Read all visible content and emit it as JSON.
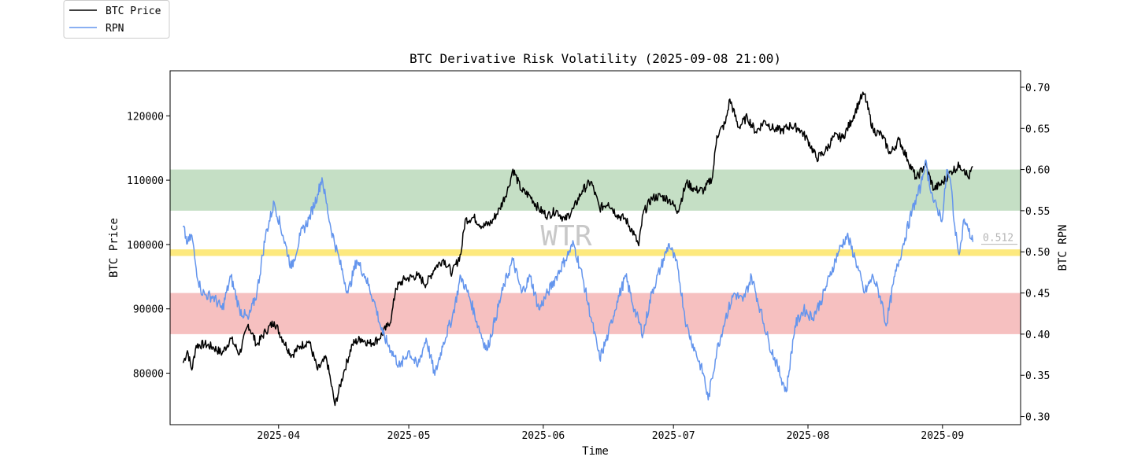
{
  "chart_data": {
    "type": "line",
    "title": "BTC Derivative Risk Volatility (2025-09-08 21:00)",
    "xlabel": "Time",
    "ylabel_left": "BTC Price",
    "ylabel_right": "BTC RPN",
    "watermark": "WTR",
    "x_range": [
      "2025-03-07",
      "2025-09-19"
    ],
    "x_ticks": [
      "2025-04",
      "2025-05",
      "2025-06",
      "2025-07",
      "2025-08",
      "2025-09"
    ],
    "x_tick_dates": [
      "2025-04-01",
      "2025-05-01",
      "2025-06-01",
      "2025-07-01",
      "2025-08-01",
      "2025-09-01"
    ],
    "y_left_range": [
      72000,
      127000
    ],
    "y_left_ticks": [
      80000,
      90000,
      100000,
      110000,
      120000
    ],
    "y_right_range": [
      0.29,
      0.72
    ],
    "y_right_ticks": [
      "0.30",
      "0.35",
      "0.40",
      "0.45",
      "0.50",
      "0.55",
      "0.60",
      "0.65",
      "0.70"
    ],
    "bands": [
      {
        "name": "high",
        "from": 0.55,
        "to": 0.6,
        "color": "#c5dfc5"
      },
      {
        "name": "mid",
        "from": 0.495,
        "to": 0.503,
        "color": "#fde97e"
      },
      {
        "name": "low",
        "from": 0.4,
        "to": 0.45,
        "color": "#f6c0c0"
      }
    ],
    "last_value_label": "0.512",
    "last_value": 0.512,
    "legend_position": "top-left (outside axes)",
    "series": [
      {
        "name": "BTC Price",
        "axis": "left",
        "color": "#000000",
        "points": [
          [
            "2025-03-10",
            81600
          ],
          [
            "2025-03-11",
            83500
          ],
          [
            "2025-03-12",
            80500
          ],
          [
            "2025-03-13",
            84300
          ],
          [
            "2025-03-15",
            84500
          ],
          [
            "2025-03-17",
            84000
          ],
          [
            "2025-03-19",
            83100
          ],
          [
            "2025-03-21",
            85400
          ],
          [
            "2025-03-23",
            83000
          ],
          [
            "2025-03-25",
            87600
          ],
          [
            "2025-03-27",
            84400
          ],
          [
            "2025-03-29",
            86500
          ],
          [
            "2025-03-31",
            88000
          ],
          [
            "2025-04-02",
            85200
          ],
          [
            "2025-04-04",
            82800
          ],
          [
            "2025-04-06",
            84200
          ],
          [
            "2025-04-08",
            85000
          ],
          [
            "2025-04-10",
            80500
          ],
          [
            "2025-04-12",
            82400
          ],
          [
            "2025-04-13",
            78800
          ],
          [
            "2025-04-14",
            75000
          ],
          [
            "2025-04-16",
            80100
          ],
          [
            "2025-04-18",
            84500
          ],
          [
            "2025-04-20",
            85400
          ],
          [
            "2025-04-22",
            84600
          ],
          [
            "2025-04-24",
            85300
          ],
          [
            "2025-04-26",
            87200
          ],
          [
            "2025-04-27",
            88600
          ],
          [
            "2025-04-28",
            93200
          ],
          [
            "2025-04-30",
            94600
          ],
          [
            "2025-05-03",
            95200
          ],
          [
            "2025-05-05",
            93800
          ],
          [
            "2025-05-07",
            96400
          ],
          [
            "2025-05-09",
            97700
          ],
          [
            "2025-05-11",
            95600
          ],
          [
            "2025-05-13",
            98500
          ],
          [
            "2025-05-14",
            103800
          ],
          [
            "2025-05-16",
            104200
          ],
          [
            "2025-05-18",
            102800
          ],
          [
            "2025-05-20",
            103400
          ],
          [
            "2025-05-22",
            105600
          ],
          [
            "2025-05-24",
            108900
          ],
          [
            "2025-05-25",
            111700
          ],
          [
            "2025-05-27",
            108400
          ],
          [
            "2025-05-29",
            107500
          ],
          [
            "2025-05-31",
            105500
          ],
          [
            "2025-06-02",
            104500
          ],
          [
            "2025-06-04",
            105300
          ],
          [
            "2025-06-06",
            103800
          ],
          [
            "2025-06-08",
            105600
          ],
          [
            "2025-06-10",
            108400
          ],
          [
            "2025-06-12",
            109800
          ],
          [
            "2025-06-14",
            105600
          ],
          [
            "2025-06-16",
            106500
          ],
          [
            "2025-06-18",
            104600
          ],
          [
            "2025-06-20",
            103900
          ],
          [
            "2025-06-22",
            101500
          ],
          [
            "2025-06-23",
            99800
          ],
          [
            "2025-06-24",
            104800
          ],
          [
            "2025-06-26",
            107200
          ],
          [
            "2025-06-28",
            107500
          ],
          [
            "2025-06-30",
            107000
          ],
          [
            "2025-07-02",
            105200
          ],
          [
            "2025-07-04",
            109600
          ],
          [
            "2025-07-06",
            108500
          ],
          [
            "2025-07-08",
            108400
          ],
          [
            "2025-07-10",
            110500
          ],
          [
            "2025-07-11",
            116900
          ],
          [
            "2025-07-13",
            118900
          ],
          [
            "2025-07-14",
            122600
          ],
          [
            "2025-07-16",
            118200
          ],
          [
            "2025-07-18",
            119800
          ],
          [
            "2025-07-20",
            117500
          ],
          [
            "2025-07-22",
            119200
          ],
          [
            "2025-07-24",
            118000
          ],
          [
            "2025-07-26",
            117700
          ],
          [
            "2025-07-28",
            118500
          ],
          [
            "2025-07-30",
            118000
          ],
          [
            "2025-08-01",
            116200
          ],
          [
            "2025-08-03",
            113400
          ],
          [
            "2025-08-05",
            114500
          ],
          [
            "2025-08-07",
            116800
          ],
          [
            "2025-08-09",
            116600
          ],
          [
            "2025-08-11",
            119200
          ],
          [
            "2025-08-13",
            122500
          ],
          [
            "2025-08-14",
            123400
          ],
          [
            "2025-08-16",
            117800
          ],
          [
            "2025-08-18",
            117000
          ],
          [
            "2025-08-20",
            114100
          ],
          [
            "2025-08-22",
            116300
          ],
          [
            "2025-08-24",
            113200
          ],
          [
            "2025-08-26",
            110200
          ],
          [
            "2025-08-28",
            112500
          ],
          [
            "2025-08-30",
            108600
          ],
          [
            "2025-09-01",
            109600
          ],
          [
            "2025-09-03",
            111400
          ],
          [
            "2025-09-05",
            112300
          ],
          [
            "2025-09-06",
            111700
          ],
          [
            "2025-09-07",
            110300
          ],
          [
            "2025-09-08",
            112100
          ]
        ]
      },
      {
        "name": "RPN",
        "axis": "right",
        "color": "#6495ed",
        "points": [
          [
            "2025-03-10",
            0.53
          ],
          [
            "2025-03-11",
            0.51
          ],
          [
            "2025-03-12",
            0.52
          ],
          [
            "2025-03-13",
            0.48
          ],
          [
            "2025-03-14",
            0.455
          ],
          [
            "2025-03-15",
            0.448
          ],
          [
            "2025-03-17",
            0.445
          ],
          [
            "2025-03-19",
            0.43
          ],
          [
            "2025-03-21",
            0.47
          ],
          [
            "2025-03-23",
            0.43
          ],
          [
            "2025-03-25",
            0.418
          ],
          [
            "2025-03-27",
            0.45
          ],
          [
            "2025-03-29",
            0.52
          ],
          [
            "2025-03-31",
            0.56
          ],
          [
            "2025-04-02",
            0.52
          ],
          [
            "2025-04-04",
            0.48
          ],
          [
            "2025-04-06",
            0.52
          ],
          [
            "2025-04-08",
            0.54
          ],
          [
            "2025-04-10",
            0.57
          ],
          [
            "2025-04-11",
            0.59
          ],
          [
            "2025-04-13",
            0.53
          ],
          [
            "2025-04-15",
            0.49
          ],
          [
            "2025-04-17",
            0.45
          ],
          [
            "2025-04-19",
            0.49
          ],
          [
            "2025-04-21",
            0.47
          ],
          [
            "2025-04-23",
            0.44
          ],
          [
            "2025-04-25",
            0.4
          ],
          [
            "2025-04-27",
            0.38
          ],
          [
            "2025-04-29",
            0.36
          ],
          [
            "2025-05-01",
            0.38
          ],
          [
            "2025-05-03",
            0.36
          ],
          [
            "2025-05-05",
            0.395
          ],
          [
            "2025-05-07",
            0.35
          ],
          [
            "2025-05-09",
            0.39
          ],
          [
            "2025-05-11",
            0.42
          ],
          [
            "2025-05-13",
            0.47
          ],
          [
            "2025-05-15",
            0.445
          ],
          [
            "2025-05-17",
            0.41
          ],
          [
            "2025-05-19",
            0.38
          ],
          [
            "2025-05-21",
            0.42
          ],
          [
            "2025-05-23",
            0.46
          ],
          [
            "2025-05-25",
            0.49
          ],
          [
            "2025-05-27",
            0.45
          ],
          [
            "2025-05-29",
            0.47
          ],
          [
            "2025-05-31",
            0.43
          ],
          [
            "2025-06-02",
            0.45
          ],
          [
            "2025-06-04",
            0.47
          ],
          [
            "2025-06-06",
            0.49
          ],
          [
            "2025-06-08",
            0.51
          ],
          [
            "2025-06-10",
            0.47
          ],
          [
            "2025-06-12",
            0.42
          ],
          [
            "2025-06-14",
            0.37
          ],
          [
            "2025-06-16",
            0.4
          ],
          [
            "2025-06-18",
            0.44
          ],
          [
            "2025-06-20",
            0.47
          ],
          [
            "2025-06-22",
            0.43
          ],
          [
            "2025-06-24",
            0.4
          ],
          [
            "2025-06-26",
            0.45
          ],
          [
            "2025-06-28",
            0.48
          ],
          [
            "2025-06-30",
            0.51
          ],
          [
            "2025-07-02",
            0.48
          ],
          [
            "2025-07-04",
            0.41
          ],
          [
            "2025-07-06",
            0.38
          ],
          [
            "2025-07-08",
            0.35
          ],
          [
            "2025-07-09",
            0.32
          ],
          [
            "2025-07-11",
            0.38
          ],
          [
            "2025-07-13",
            0.42
          ],
          [
            "2025-07-15",
            0.45
          ],
          [
            "2025-07-17",
            0.44
          ],
          [
            "2025-07-19",
            0.47
          ],
          [
            "2025-07-21",
            0.43
          ],
          [
            "2025-07-23",
            0.39
          ],
          [
            "2025-07-25",
            0.36
          ],
          [
            "2025-07-27",
            0.33
          ],
          [
            "2025-07-29",
            0.41
          ],
          [
            "2025-07-31",
            0.43
          ],
          [
            "2025-08-02",
            0.42
          ],
          [
            "2025-08-04",
            0.44
          ],
          [
            "2025-08-06",
            0.47
          ],
          [
            "2025-08-08",
            0.5
          ],
          [
            "2025-08-10",
            0.52
          ],
          [
            "2025-08-12",
            0.49
          ],
          [
            "2025-08-14",
            0.45
          ],
          [
            "2025-08-16",
            0.47
          ],
          [
            "2025-08-18",
            0.44
          ],
          [
            "2025-08-19",
            0.41
          ],
          [
            "2025-08-21",
            0.47
          ],
          [
            "2025-08-23",
            0.51
          ],
          [
            "2025-08-25",
            0.55
          ],
          [
            "2025-08-27",
            0.58
          ],
          [
            "2025-08-28",
            0.61
          ],
          [
            "2025-08-30",
            0.56
          ],
          [
            "2025-09-01",
            0.54
          ],
          [
            "2025-09-02",
            0.6
          ],
          [
            "2025-09-03",
            0.58
          ],
          [
            "2025-09-04",
            0.52
          ],
          [
            "2025-09-05",
            0.5
          ],
          [
            "2025-09-06",
            0.54
          ],
          [
            "2025-09-07",
            0.525
          ],
          [
            "2025-09-08",
            0.512
          ]
        ]
      }
    ]
  }
}
